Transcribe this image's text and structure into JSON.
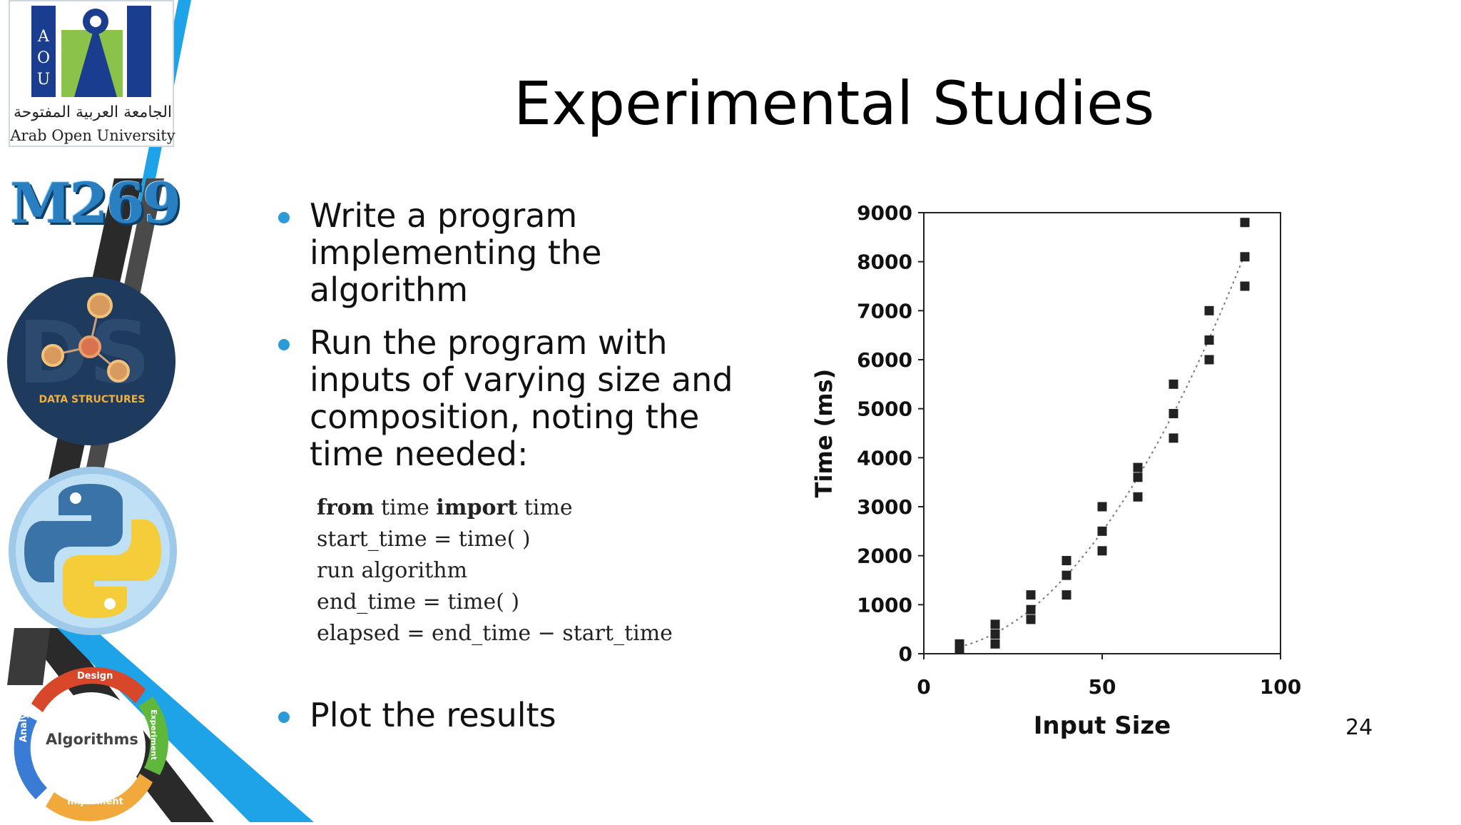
{
  "sidebar": {
    "logo": {
      "letters": "AOU",
      "arabic_name": "الجامعة العربية المفتوحة",
      "english_name": "Arab Open University"
    },
    "course_code": "M269",
    "data_structures_label": "DATA STRUCTURES",
    "algorithms_cycle": {
      "center": "Algorithms",
      "design": "Design",
      "implement": "Implement",
      "analyze": "Analyze",
      "experiment": "Experiment"
    },
    "colors": {
      "blue_stripe": "#1ea3e8",
      "dark_stripe": "#2b2b2b",
      "gray_stripe": "#4a4a4a"
    }
  },
  "slide": {
    "title": "Experimental Studies",
    "bullets": [
      {
        "lines": [
          "Write a program",
          "implementing the",
          "algorithm"
        ]
      },
      {
        "lines": [
          "Run the program with",
          "inputs of varying size and",
          "composition, noting the",
          "time needed:"
        ]
      },
      {
        "lines": [
          "Plot the results"
        ]
      }
    ],
    "code": [
      {
        "kw1": "from",
        "t1": " time ",
        "kw2": "import",
        "t2": " time"
      },
      {
        "text": "start_time = time( )"
      },
      {
        "text": "run algorithm"
      },
      {
        "text": "end_time = time( )"
      },
      {
        "text": "elapsed = end_time − start_time"
      }
    ],
    "page_number": "24",
    "bullet_color": "#2b9ad6"
  },
  "chart_data": {
    "type": "scatter",
    "title": "",
    "xlabel": "Input Size",
    "ylabel": "Time (ms)",
    "xlim": [
      0,
      100
    ],
    "ylim": [
      0,
      9000
    ],
    "x_ticks": [
      0,
      50,
      100
    ],
    "y_ticks": [
      0,
      1000,
      2000,
      3000,
      4000,
      5000,
      6000,
      7000,
      8000,
      9000
    ],
    "grid": false,
    "legend": "none",
    "trendline": "quadratic dotted",
    "marker_color": "#222222",
    "points": [
      {
        "x": 10,
        "y": 100
      },
      {
        "x": 10,
        "y": 200
      },
      {
        "x": 20,
        "y": 200
      },
      {
        "x": 20,
        "y": 400
      },
      {
        "x": 20,
        "y": 600
      },
      {
        "x": 30,
        "y": 700
      },
      {
        "x": 30,
        "y": 900
      },
      {
        "x": 30,
        "y": 1200
      },
      {
        "x": 40,
        "y": 1200
      },
      {
        "x": 40,
        "y": 1600
      },
      {
        "x": 40,
        "y": 1900
      },
      {
        "x": 50,
        "y": 2100
      },
      {
        "x": 50,
        "y": 2500
      },
      {
        "x": 50,
        "y": 3000
      },
      {
        "x": 60,
        "y": 3200
      },
      {
        "x": 60,
        "y": 3600
      },
      {
        "x": 60,
        "y": 3800
      },
      {
        "x": 70,
        "y": 4400
      },
      {
        "x": 70,
        "y": 4900
      },
      {
        "x": 70,
        "y": 5500
      },
      {
        "x": 80,
        "y": 6000
      },
      {
        "x": 80,
        "y": 6400
      },
      {
        "x": 80,
        "y": 7000
      },
      {
        "x": 90,
        "y": 7500
      },
      {
        "x": 90,
        "y": 8100
      },
      {
        "x": 90,
        "y": 8800
      }
    ]
  }
}
